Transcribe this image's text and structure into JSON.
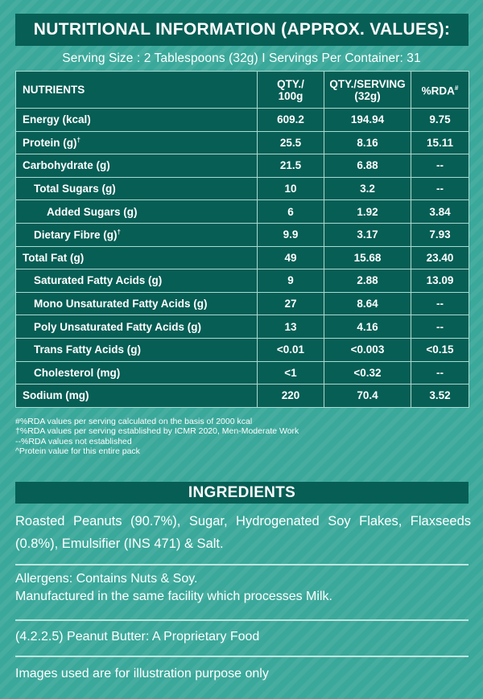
{
  "header": {
    "title": "NUTRITIONAL INFORMATION (APPROX. VALUES):",
    "serving_line": "Serving Size : 2 Tablespoons (32g) I Servings Per Container: 31"
  },
  "table": {
    "columns": [
      "NUTRIENTS",
      "QTY./\n100g",
      "QTY./SERVING\n(32g)",
      "%RDA#"
    ],
    "col_nutrients": "NUTRIENTS",
    "col_qty100_line1": "QTY./",
    "col_qty100_line2": "100g",
    "col_serving_line1": "QTY./SERVING",
    "col_serving_line2": "(32g)",
    "col_rda": "%RDA",
    "col_rda_mark": "#",
    "rows": [
      {
        "name": "Energy (kcal)",
        "mark": "",
        "indent": 0,
        "per100": "609.2",
        "serving": "194.94",
        "rda": "9.75"
      },
      {
        "name": "Protein (g)",
        "mark": "†",
        "indent": 0,
        "per100": "25.5",
        "serving": "8.16",
        "rda": "15.11"
      },
      {
        "name": "Carbohydrate (g)",
        "mark": "",
        "indent": 0,
        "per100": "21.5",
        "serving": "6.88",
        "rda": "--"
      },
      {
        "name": "Total Sugars (g)",
        "mark": "",
        "indent": 1,
        "per100": "10",
        "serving": "3.2",
        "rda": "--"
      },
      {
        "name": "Added Sugars (g)",
        "mark": "",
        "indent": 2,
        "per100": "6",
        "serving": "1.92",
        "rda": "3.84"
      },
      {
        "name": "Dietary Fibre (g)",
        "mark": "†",
        "indent": 1,
        "per100": "9.9",
        "serving": "3.17",
        "rda": "7.93"
      },
      {
        "name": "Total Fat (g)",
        "mark": "",
        "indent": 0,
        "per100": "49",
        "serving": "15.68",
        "rda": "23.40"
      },
      {
        "name": "Saturated Fatty Acids (g)",
        "mark": "",
        "indent": 1,
        "per100": "9",
        "serving": "2.88",
        "rda": "13.09"
      },
      {
        "name": "Mono Unsaturated Fatty Acids (g)",
        "mark": "",
        "indent": 1,
        "per100": "27",
        "serving": "8.64",
        "rda": "--"
      },
      {
        "name": "Poly Unsaturated Fatty Acids (g)",
        "mark": "",
        "indent": 1,
        "per100": "13",
        "serving": "4.16",
        "rda": "--"
      },
      {
        "name": "Trans Fatty Acids (g)",
        "mark": "",
        "indent": 1,
        "per100": "<0.01",
        "serving": "<0.003",
        "rda": "<0.15"
      },
      {
        "name": "Cholesterol (mg)",
        "mark": "",
        "indent": 1,
        "per100": "<1",
        "serving": "<0.32",
        "rda": "--"
      },
      {
        "name": "Sodium (mg)",
        "mark": "",
        "indent": 0,
        "per100": "220",
        "serving": "70.4",
        "rda": "3.52"
      }
    ]
  },
  "footnotes": [
    "#%RDA values per serving calculated on the basis of 2000 kcal",
    "†%RDA values per serving established by ICMR 2020, Men-Moderate Work",
    "--%RDA values not established",
    "^Protein value for this entire pack"
  ],
  "ingredients": {
    "heading": "INGREDIENTS",
    "text": "Roasted Peanuts (90.7%), Sugar, Hydrogenated Soy Flakes, Flaxseeds (0.8%), Emulsifier (INS 471) & Salt.",
    "allergens_line1": "Allergens: Contains Nuts & Soy.",
    "allergens_line2": "Manufactured in the same facility which processes Milk.",
    "proprietary": "(4.2.2.5) Peanut Butter: A Proprietary Food",
    "disclaimer": "Images used are for illustration purpose only"
  },
  "colors": {
    "background": "#3aa89a",
    "panel": "#075e55",
    "text": "#ffffff"
  }
}
